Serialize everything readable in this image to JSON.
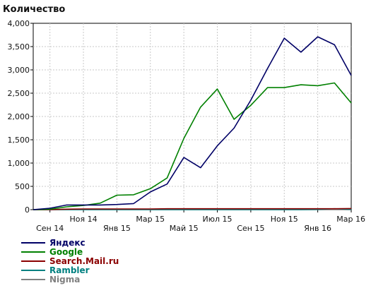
{
  "chart_title": "Количество",
  "chart_data": {
    "type": "line",
    "title": "Количество",
    "xlabel": "",
    "ylabel": "",
    "ylim": [
      0,
      4000
    ],
    "yticks": [
      0,
      500,
      1000,
      1500,
      2000,
      2500,
      3000,
      3500,
      4000
    ],
    "ytick_labels": [
      "0",
      "500",
      "1,000",
      "1,500",
      "2,000",
      "2,500",
      "3,000",
      "3,500",
      "4,000"
    ],
    "grid": true,
    "legend_position": "bottom-left",
    "x": [
      "2014-08",
      "2014-09",
      "2014-10",
      "2014-11",
      "2014-12",
      "2015-01",
      "2015-02",
      "2015-03",
      "2015-04",
      "2015-05",
      "2015-06",
      "2015-07",
      "2015-08",
      "2015-09",
      "2015-10",
      "2015-11",
      "2015-12",
      "2016-01",
      "2016-02",
      "2016-03"
    ],
    "xtick_labels": [
      "Сен 14",
      "Ноя 14",
      "Янв 15",
      "Мар 15",
      "Май 15",
      "Июл 15",
      "Сен 15",
      "Ноя 15",
      "Янв 16",
      "Мар 16"
    ],
    "series": [
      {
        "name": "Яндекс",
        "color": "#000066",
        "values": [
          0,
          30,
          100,
          100,
          100,
          110,
          130,
          380,
          550,
          1120,
          900,
          1370,
          1750,
          2350,
          3030,
          3680,
          3380,
          3710,
          3540,
          2880
        ]
      },
      {
        "name": "Google",
        "color": "#008000",
        "values": [
          0,
          10,
          60,
          90,
          140,
          310,
          320,
          450,
          680,
          1530,
          2200,
          2590,
          1940,
          2240,
          2620,
          2620,
          2680,
          2660,
          2720,
          2290
        ]
      },
      {
        "name": "Search.Mail.ru",
        "color": "#8B0000",
        "values": [
          0,
          0,
          10,
          15,
          15,
          15,
          15,
          15,
          20,
          20,
          20,
          20,
          20,
          20,
          20,
          20,
          20,
          20,
          20,
          25
        ]
      },
      {
        "name": "Rambler",
        "color": "#008080",
        "values": [
          0,
          0,
          0,
          0,
          0,
          0,
          0,
          0,
          0,
          0,
          0,
          0,
          0,
          0,
          0,
          0,
          0,
          5,
          20,
          5
        ]
      },
      {
        "name": "Nigma",
        "color": "#808080",
        "values": [
          0,
          0,
          0,
          0,
          0,
          0,
          0,
          0,
          0,
          0,
          0,
          0,
          0,
          0,
          0,
          0,
          0,
          0,
          0,
          0
        ]
      }
    ]
  }
}
